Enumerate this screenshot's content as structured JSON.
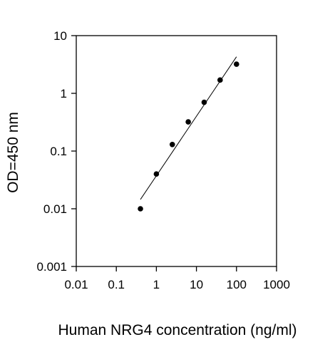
{
  "chart_data": {
    "type": "scatter",
    "title": "",
    "xlabel": "Human NRG4 concentration (ng/ml)",
    "ylabel": "OD=450 nm",
    "x_scale": "log",
    "y_scale": "log",
    "xlim": [
      0.01,
      1000
    ],
    "ylim": [
      0.001,
      10
    ],
    "x_ticks": [
      "0.01",
      "0.1",
      "1",
      "10",
      "100",
      "1000"
    ],
    "y_ticks": [
      "0.001",
      "0.01",
      "0.1",
      "1",
      "10"
    ],
    "grid": false,
    "legend": "none",
    "series": [
      {
        "points": [
          {
            "x": 0.4,
            "y": 0.01
          },
          {
            "x": 1.0,
            "y": 0.04
          },
          {
            "x": 2.5,
            "y": 0.13
          },
          {
            "x": 6.25,
            "y": 0.32
          },
          {
            "x": 15.6,
            "y": 0.7
          },
          {
            "x": 39.0,
            "y": 1.7
          },
          {
            "x": 100.0,
            "y": 3.2
          }
        ],
        "color": "#000000"
      }
    ],
    "trendline": {
      "x_range": [
        0.4,
        100.0
      ],
      "y_range": [
        0.0145,
        4.3
      ],
      "color": "#000000"
    }
  }
}
